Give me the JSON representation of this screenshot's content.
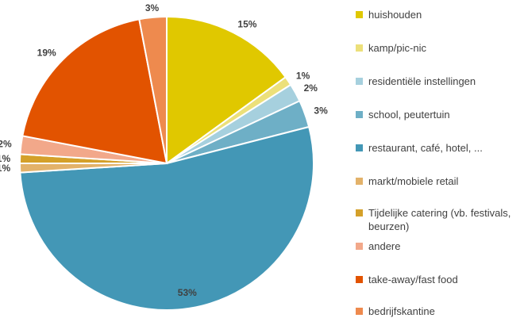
{
  "chart_data": {
    "type": "pie",
    "slices": [
      {
        "label": "huishouden",
        "value": 15,
        "display": "15%",
        "color": "#E0C800"
      },
      {
        "label": "kamp/pic-nic",
        "value": 1,
        "display": "1%",
        "color": "#ECE07A"
      },
      {
        "label": "residentiële instellingen",
        "value": 2,
        "display": "2%",
        "color": "#A6D0DE"
      },
      {
        "label": "school, peutertuin",
        "value": 3,
        "display": "3%",
        "color": "#6EAFC6"
      },
      {
        "label": "restaurant, café, hotel, ...",
        "value": 53,
        "display": "53%",
        "color": "#4397B6"
      },
      {
        "label": "markt/mobiele retail",
        "value": 1,
        "display": "1%",
        "color": "#E3B26A"
      },
      {
        "label": "Tijdelijke catering (vb. festivals, beurzen)",
        "value": 1,
        "display": "1%",
        "color": "#D4A02A"
      },
      {
        "label": "andere",
        "value": 2,
        "display": "2%",
        "color": "#F2A88A"
      },
      {
        "label": "take-away/fast food",
        "value": 19,
        "display": "19%",
        "color": "#E25300"
      },
      {
        "label": "bedrijfskantine",
        "value": 3,
        "display": "3%",
        "color": "#EE8A4E"
      }
    ],
    "legend_position": "right",
    "start_angle_deg": 0,
    "direction": "clockwise"
  }
}
